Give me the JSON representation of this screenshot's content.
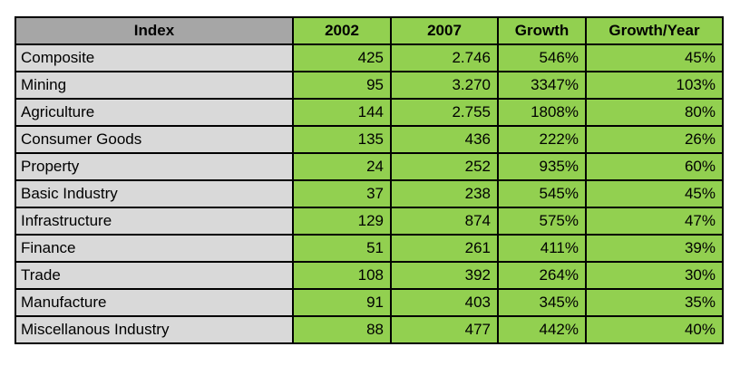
{
  "chart_data": {
    "type": "table",
    "columns": [
      "Index",
      "2002",
      "2007",
      "Growth",
      "Growth/Year"
    ],
    "rows": [
      [
        "Composite",
        "425",
        "2.746",
        "546%",
        "45%"
      ],
      [
        "Mining",
        "95",
        "3.270",
        "3347%",
        "103%"
      ],
      [
        "Agriculture",
        "144",
        "2.755",
        "1808%",
        "80%"
      ],
      [
        "Consumer Goods",
        "135",
        "436",
        "222%",
        "26%"
      ],
      [
        "Property",
        "24",
        "252",
        "935%",
        "60%"
      ],
      [
        "Basic Industry",
        "37",
        "238",
        "545%",
        "45%"
      ],
      [
        "Infrastructure",
        "129",
        "874",
        "575%",
        "47%"
      ],
      [
        "Finance",
        "51",
        "261",
        "411%",
        "39%"
      ],
      [
        "Trade",
        "108",
        "392",
        "264%",
        "30%"
      ],
      [
        "Manufacture",
        "91",
        "403",
        "345%",
        "35%"
      ],
      [
        "Miscellanous Industry",
        "88",
        "477",
        "442%",
        "40%"
      ]
    ],
    "legend_position": "none",
    "grid": true
  },
  "colors": {
    "header_index_fill": "#a6a6a6",
    "index_column_fill": "#d9d9d9",
    "data_cell_fill": "#92d050",
    "border": "#000000",
    "text": "#000000",
    "background": "#ffffff"
  }
}
